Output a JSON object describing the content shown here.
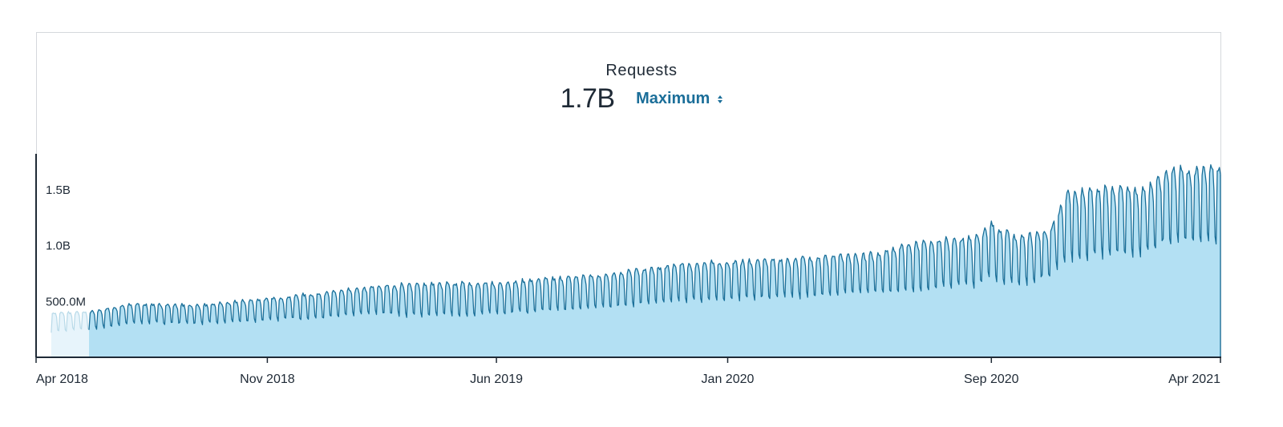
{
  "header": {
    "title": "Requests",
    "value": "1.7B",
    "aggregation_label": "Maximum"
  },
  "colors": {
    "line": "#1a6f99",
    "fill": "#b3e0f3",
    "ghost_fill": "#e7f4fb",
    "ghost_line": "#b7d9e8",
    "axis": "#1f2a36",
    "accent": "#1b6e99"
  },
  "icons": {
    "aggregation": "sort-updown-icon"
  },
  "chart_data": {
    "type": "area",
    "title": "Requests",
    "xlabel": "",
    "ylabel": "",
    "x_range": [
      "2018-04-01",
      "2021-04-01"
    ],
    "ylim": [
      0,
      1800000000
    ],
    "y_ticks": [
      {
        "value": 500000000,
        "label": "500.0M"
      },
      {
        "value": 1000000000,
        "label": "1.0B"
      },
      {
        "value": 1500000000,
        "label": "1.5B"
      }
    ],
    "x_ticks": [
      {
        "date": "2018-04-01",
        "label": "Apr 2018"
      },
      {
        "date": "2018-11-01",
        "label": "Nov 2018"
      },
      {
        "date": "2019-06-01",
        "label": "Jun 2019"
      },
      {
        "date": "2020-01-01",
        "label": "Jan 2020"
      },
      {
        "date": "2020-09-01",
        "label": "Sep 2020"
      },
      {
        "date": "2021-04-01",
        "label": "Apr 2021"
      }
    ],
    "highlighted_from": "2018-05-20",
    "series": [
      {
        "weekly": {
          "weekday_max": [
            [
              "2018-04-15",
              400000000
            ],
            [
              "2018-05-20",
              410000000
            ],
            [
              "2018-07-01",
              480000000
            ],
            [
              "2018-09-01",
              470000000
            ],
            [
              "2018-11-01",
              530000000
            ],
            [
              "2019-01-01",
              590000000
            ],
            [
              "2019-02-10",
              640000000
            ],
            [
              "2019-03-15",
              660000000
            ],
            [
              "2019-06-01",
              670000000
            ],
            [
              "2019-09-01",
              740000000
            ],
            [
              "2019-11-20",
              840000000
            ],
            [
              "2020-01-01",
              860000000
            ],
            [
              "2020-03-01",
              890000000
            ],
            [
              "2020-05-15",
              930000000
            ],
            [
              "2020-06-20",
              1030000000
            ],
            [
              "2020-08-15",
              1080000000
            ],
            [
              "2020-09-01",
              1200000000
            ],
            [
              "2020-09-25",
              1080000000
            ],
            [
              "2020-10-25",
              1140000000
            ],
            [
              "2020-11-10",
              1480000000
            ],
            [
              "2020-12-20",
              1520000000
            ],
            [
              "2021-01-20",
              1500000000
            ],
            [
              "2021-02-10",
              1680000000
            ],
            [
              "2021-04-01",
              1700000000
            ]
          ],
          "weekend_min": [
            [
              "2018-04-15",
              230000000
            ],
            [
              "2018-05-20",
              250000000
            ],
            [
              "2018-07-01",
              310000000
            ],
            [
              "2018-09-01",
              300000000
            ],
            [
              "2018-11-01",
              330000000
            ],
            [
              "2019-01-01",
              360000000
            ],
            [
              "2019-02-10",
              390000000
            ],
            [
              "2019-03-15",
              370000000
            ],
            [
              "2019-06-01",
              390000000
            ],
            [
              "2019-09-01",
              440000000
            ],
            [
              "2019-11-20",
              500000000
            ],
            [
              "2020-01-01",
              520000000
            ],
            [
              "2020-03-01",
              540000000
            ],
            [
              "2020-05-15",
              580000000
            ],
            [
              "2020-06-20",
              610000000
            ],
            [
              "2020-08-15",
              640000000
            ],
            [
              "2020-09-01",
              720000000
            ],
            [
              "2020-09-25",
              640000000
            ],
            [
              "2020-10-25",
              740000000
            ],
            [
              "2020-11-10",
              880000000
            ],
            [
              "2020-12-20",
              920000000
            ],
            [
              "2021-01-20",
              920000000
            ],
            [
              "2021-02-10",
              1040000000
            ],
            [
              "2021-04-01",
              1020000000
            ]
          ]
        }
      }
    ]
  }
}
